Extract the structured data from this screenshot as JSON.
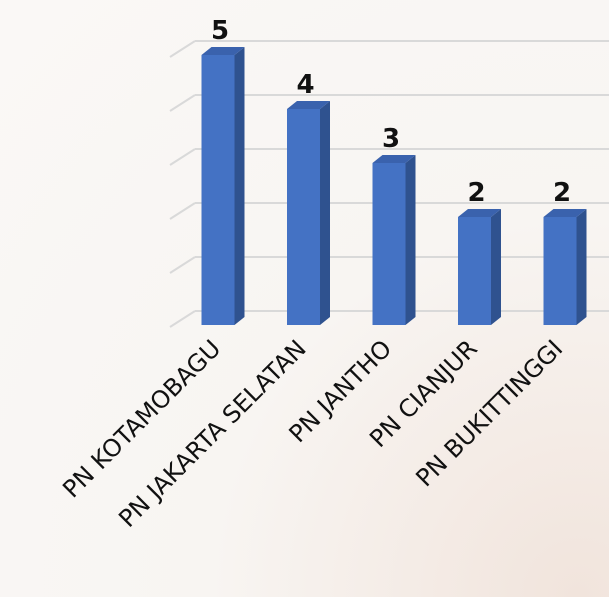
{
  "chart_data": {
    "type": "bar",
    "categories": [
      "PN KOTAMOBAGU",
      "PN JAKARTA SELATAN",
      "PN JANTHO",
      "PN CIANJUR",
      "PN BUKITTINGGI"
    ],
    "values": [
      5,
      4,
      3,
      2,
      2
    ],
    "ylim": [
      0,
      5
    ],
    "grid": true,
    "three_d": true
  },
  "colors": {
    "bar_front": "#4472c4",
    "bar_side": "#2f528f",
    "bar_top": "#3a62ad",
    "grid": "#d9d9d9",
    "text": "#111111"
  }
}
